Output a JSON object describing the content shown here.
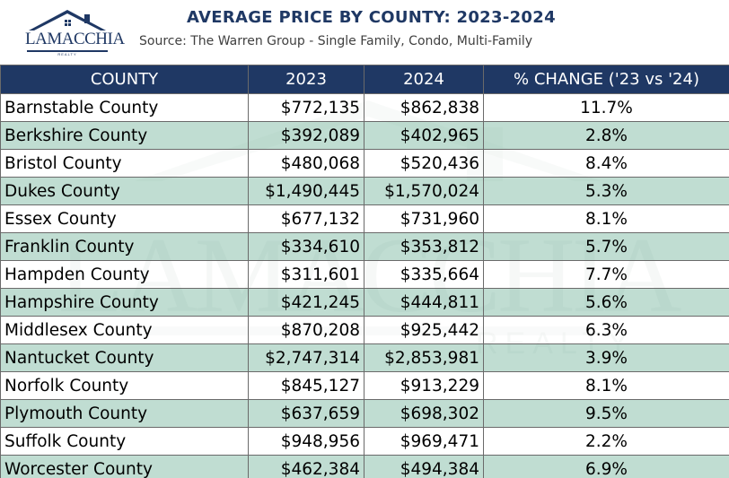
{
  "header": {
    "logo_text": "LAMACCHIA",
    "logo_sub": "REALTY",
    "title": "AVERAGE PRICE BY COUNTY: 2023-2024",
    "subtitle": "Source: The Warren Group - Single Family, Condo, Multi-Family"
  },
  "colors": {
    "header_navy": "#1f3864",
    "row_alt_green": "#b2d6c8",
    "row_white": "#ffffff"
  },
  "chart_data": {
    "type": "table",
    "title": "AVERAGE PRICE BY COUNTY: 2023-2024",
    "subtitle": "Source: The Warren Group - Single Family, Condo, Multi-Family",
    "columns": [
      "COUNTY",
      "2023",
      "2024",
      "% CHANGE ('23 vs '24)"
    ],
    "rows": [
      [
        "Barnstable County",
        "$772,135",
        "$862,838",
        "11.7%"
      ],
      [
        "Berkshire County",
        "$392,089",
        "$402,965",
        "2.8%"
      ],
      [
        "Bristol County",
        "$480,068",
        "$520,436",
        "8.4%"
      ],
      [
        "Dukes County",
        "$1,490,445",
        "$1,570,024",
        "5.3%"
      ],
      [
        "Essex County",
        "$677,132",
        "$731,960",
        "8.1%"
      ],
      [
        "Franklin County",
        "$334,610",
        "$353,812",
        "5.7%"
      ],
      [
        "Hampden County",
        "$311,601",
        "$335,664",
        "7.7%"
      ],
      [
        "Hampshire County",
        "$421,245",
        "$444,811",
        "5.6%"
      ],
      [
        "Middlesex County",
        "$870,208",
        "$925,442",
        "6.3%"
      ],
      [
        "Nantucket County",
        "$2,747,314",
        "$2,853,981",
        "3.9%"
      ],
      [
        "Norfolk County",
        "$845,127",
        "$913,229",
        "8.1%"
      ],
      [
        "Plymouth County",
        "$637,659",
        "$698,302",
        "9.5%"
      ],
      [
        "Suffolk County",
        "$948,956",
        "$969,471",
        "2.2%"
      ],
      [
        "Worcester County",
        "$462,384",
        "$494,384",
        "6.9%"
      ]
    ]
  }
}
